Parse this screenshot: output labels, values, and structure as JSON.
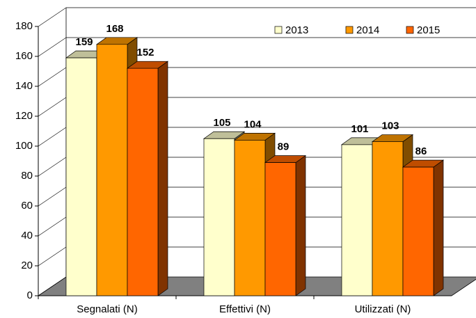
{
  "chart_data": {
    "type": "bar3d",
    "categories": [
      "Segnalati (N)",
      "Effettivi (N)",
      "Utilizzati (N)"
    ],
    "series": [
      {
        "name": "2013",
        "color": "#ffffcc",
        "values": [
          159,
          105,
          101
        ]
      },
      {
        "name": "2014",
        "color": "#ff9900",
        "values": [
          168,
          104,
          103
        ]
      },
      {
        "name": "2015",
        "color": "#ff6600",
        "values": [
          152,
          89,
          86
        ]
      }
    ],
    "ylim": [
      0,
      180
    ],
    "yticks": [
      0,
      20,
      40,
      60,
      80,
      100,
      120,
      140,
      160,
      180
    ],
    "grid": true,
    "legend": "top-right"
  }
}
